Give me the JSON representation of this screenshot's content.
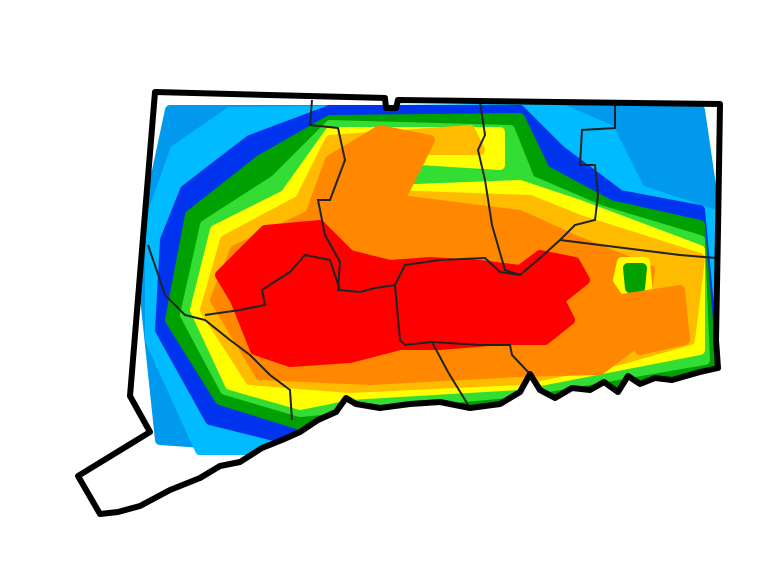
{
  "map": {
    "region": "Connecticut",
    "background_color": "#ffffff",
    "outline_color": "#000000",
    "county_line_color": "#222222",
    "intensity_colors": [
      {
        "level": 1,
        "color": "#0099ee"
      },
      {
        "level": 2,
        "color": "#00bbff"
      },
      {
        "level": 3,
        "color": "#0033ee"
      },
      {
        "level": 4,
        "color": "#00a000"
      },
      {
        "level": 5,
        "color": "#33dd33"
      },
      {
        "level": 6,
        "color": "#ffff00"
      },
      {
        "level": 7,
        "color": "#ffbb00"
      },
      {
        "level": 8,
        "color": "#ff8800"
      },
      {
        "level": 9,
        "color": "#ff0000"
      }
    ]
  }
}
